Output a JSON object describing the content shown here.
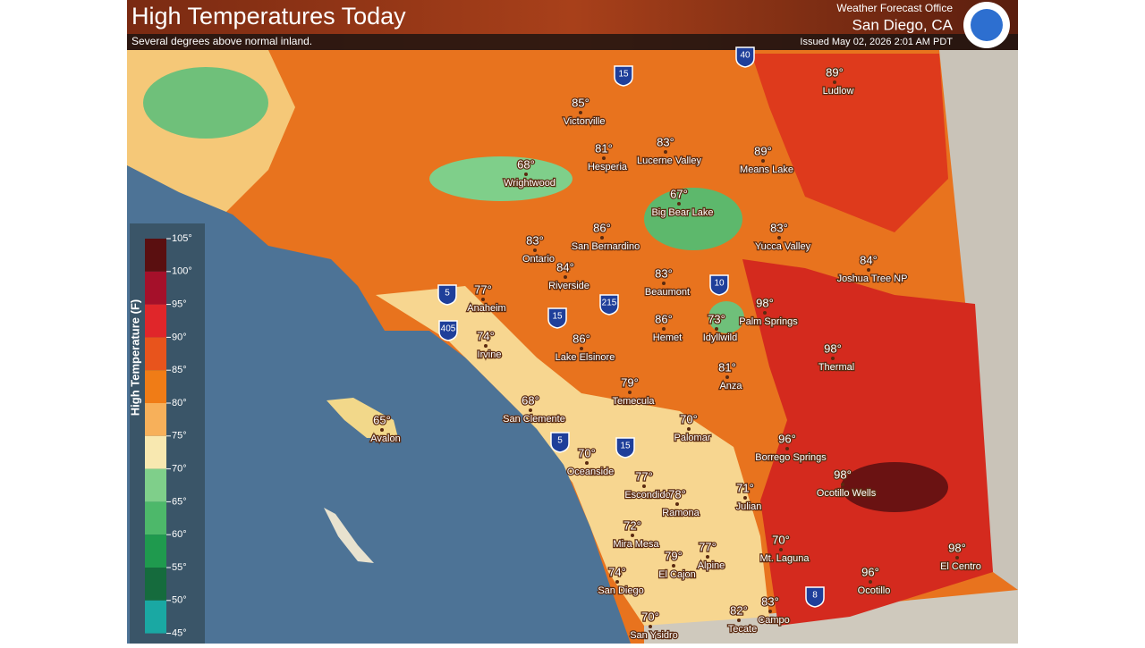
{
  "header": {
    "title": "High Temperatures Today",
    "subtitle": "Several degrees above normal inland.",
    "office": "Weather Forecast Office",
    "location": "San Diego, CA",
    "issued": "Issued May 02, 2026 2:01 AM PDT"
  },
  "legend": {
    "title": "High Temperature (F)",
    "ticks": [
      "105°",
      "100°",
      "95°",
      "90°",
      "85°",
      "80°",
      "75°",
      "70°",
      "65°",
      "60°",
      "55°",
      "50°",
      "45°"
    ]
  },
  "cities": [
    {
      "temp": "89°",
      "name": "Ludlow"
    },
    {
      "temp": "85°",
      "name": "Victorville"
    },
    {
      "temp": "81°",
      "name": "Hesperia"
    },
    {
      "temp": "83°",
      "name": "Lucerne Valley"
    },
    {
      "temp": "89°",
      "name": "Means Lake"
    },
    {
      "temp": "68°",
      "name": "Wrightwood"
    },
    {
      "temp": "67°",
      "name": "Big Bear Lake"
    },
    {
      "temp": "86°",
      "name": "San Bernardino"
    },
    {
      "temp": "83°",
      "name": "Yucca Valley"
    },
    {
      "temp": "83°",
      "name": "Ontario"
    },
    {
      "temp": "84°",
      "name": "Joshua Tree NP"
    },
    {
      "temp": "84°",
      "name": "Riverside"
    },
    {
      "temp": "83°",
      "name": "Beaumont"
    },
    {
      "temp": "77°",
      "name": "Anaheim"
    },
    {
      "temp": "98°",
      "name": "Palm Springs"
    },
    {
      "temp": "86°",
      "name": "Hemet"
    },
    {
      "temp": "73°",
      "name": "Idyllwild"
    },
    {
      "temp": "74°",
      "name": "Irvine"
    },
    {
      "temp": "86°",
      "name": "Lake Elsinore"
    },
    {
      "temp": "98°",
      "name": "Thermal"
    },
    {
      "temp": "81°",
      "name": "Anza"
    },
    {
      "temp": "79°",
      "name": "Temecula"
    },
    {
      "temp": "68°",
      "name": "San Clemente"
    },
    {
      "temp": "65°",
      "name": "Avalon"
    },
    {
      "temp": "70°",
      "name": "Palomar"
    },
    {
      "temp": "96°",
      "name": "Borrego Springs"
    },
    {
      "temp": "70°",
      "name": "Oceanside"
    },
    {
      "temp": "98°",
      "name": "Ocotillo Wells"
    },
    {
      "temp": "77°",
      "name": "Escondido"
    },
    {
      "temp": "71°",
      "name": "Julian"
    },
    {
      "temp": "78°",
      "name": "Ramona"
    },
    {
      "temp": "72°",
      "name": "Mira Mesa"
    },
    {
      "temp": "70°",
      "name": "Mt. Laguna"
    },
    {
      "temp": "77°",
      "name": "Alpine"
    },
    {
      "temp": "79°",
      "name": "El Cajon"
    },
    {
      "temp": "98°",
      "name": "El Centro"
    },
    {
      "temp": "74°",
      "name": "San Diego"
    },
    {
      "temp": "96°",
      "name": "Ocotillo"
    },
    {
      "temp": "83°",
      "name": "Campo"
    },
    {
      "temp": "82°",
      "name": "Tecate"
    },
    {
      "temp": "70°",
      "name": "San Ysidro"
    }
  ],
  "shields": [
    "15",
    "40",
    "5",
    "10",
    "215",
    "405",
    "15",
    "5",
    "15",
    "8"
  ]
}
